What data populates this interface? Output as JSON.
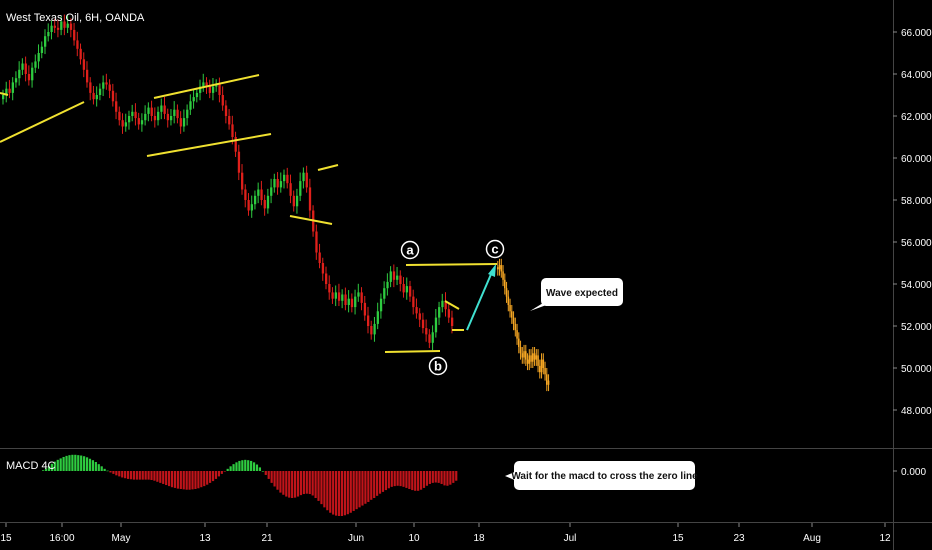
{
  "header": {
    "symbol_title": "West Texas Oil, 6H, OANDA"
  },
  "chart_data": [
    {
      "type": "candlestick",
      "title": "West Texas Oil, 6H, OANDA",
      "ylim": [
        47.0,
        67.5
      ],
      "y_ticks": [
        "66.000",
        "64.000",
        "62.000",
        "60.000",
        "58.000",
        "56.000",
        "54.000",
        "52.000",
        "50.000",
        "48.000"
      ],
      "x_ticks": [
        "15",
        "16:00",
        "May",
        "13",
        "21",
        "Jun",
        "10",
        "18",
        "Jul",
        "15",
        "23",
        "Aug",
        "12"
      ],
      "grid": false,
      "series": [
        {
          "name": "",
          "values": [
            63.0,
            63.3,
            63.1,
            63.6,
            63.8,
            64.2,
            64.5,
            64.0,
            63.7,
            64.3,
            64.6,
            65.0,
            65.3,
            65.8,
            66.0,
            66.3,
            66.2,
            66.1,
            66.5,
            66.2,
            66.4,
            66.1,
            65.6,
            65.2,
            64.7,
            64.2,
            63.6,
            63.1,
            62.8,
            63.0,
            63.3,
            63.6,
            63.5,
            63.2,
            62.7,
            62.2,
            61.8,
            61.5,
            61.7,
            62.0,
            62.2,
            61.9,
            61.6,
            61.8,
            62.1,
            62.4,
            62.0,
            61.8,
            62.2,
            62.5,
            62.1,
            61.8,
            62.0,
            62.3,
            61.9,
            61.5,
            61.9,
            62.3,
            62.7,
            62.9,
            63.1,
            63.4,
            63.6,
            63.4,
            63.1,
            63.4,
            63.5,
            63.0,
            62.5,
            62.0,
            61.6,
            61.0,
            60.3,
            59.3,
            58.5,
            58.0,
            57.5,
            57.8,
            58.2,
            58.5,
            58.0,
            57.6,
            58.2,
            58.6,
            59.0,
            58.6,
            58.9,
            59.2,
            58.8,
            58.2,
            57.7,
            58.2,
            58.9,
            59.3,
            58.6,
            57.5,
            56.5,
            55.5,
            55.0,
            54.5,
            54.0,
            53.6,
            53.3,
            53.6,
            53.2,
            53.5,
            53.0,
            53.3,
            52.9,
            53.4,
            53.6,
            53.1,
            52.5,
            52.0,
            51.6,
            52.1,
            52.7,
            53.3,
            53.8,
            54.1,
            54.6,
            54.2,
            54.4,
            54.0,
            53.6,
            53.9,
            53.4,
            52.9,
            52.6,
            52.3,
            51.9,
            51.6,
            51.2,
            51.7,
            52.4,
            52.9,
            53.2,
            52.8,
            52.4,
            52.0
          ]
        },
        {
          "name": "",
          "values": [
            54.7,
            54.9,
            54.6,
            54.2,
            53.8,
            53.4,
            53.0,
            52.7,
            52.4,
            52.1,
            51.8,
            51.4,
            51.0,
            50.7,
            50.5,
            50.8,
            50.4,
            50.2,
            50.6,
            50.3,
            50.7,
            50.4,
            50.6,
            50.1,
            49.8,
            50.4,
            50.0,
            49.7,
            49.2,
            49.4
          ]
        }
      ],
      "annotations": [
        "a",
        "b",
        "c",
        "Wave expected"
      ]
    },
    {
      "type": "bar",
      "title": "MACD 4C",
      "ylim": [
        -1.3,
        0.55
      ],
      "y_ticks": [
        "0.000"
      ],
      "x_ticks": [
        "15",
        "16:00",
        "May",
        "13",
        "21",
        "Jun",
        "10",
        "18",
        "Jul",
        "15",
        "23",
        "Aug",
        "12"
      ],
      "series": [
        {
          "name": "",
          "values": [
            0.02,
            0.07,
            0.13,
            0.2,
            0.26,
            0.31,
            0.35,
            0.39,
            0.42,
            0.44,
            0.45,
            0.45,
            0.44,
            0.43,
            0.41,
            0.38,
            0.34,
            0.3,
            0.25,
            0.19,
            0.13,
            0.06,
            0.01,
            -0.04,
            -0.08,
            -0.12,
            -0.15,
            -0.18,
            -0.2,
            -0.22,
            -0.23,
            -0.24,
            -0.24,
            -0.24,
            -0.24,
            -0.24,
            -0.24,
            -0.25,
            -0.27,
            -0.3,
            -0.33,
            -0.36,
            -0.39,
            -0.42,
            -0.45,
            -0.47,
            -0.49,
            -0.5,
            -0.51,
            -0.52,
            -0.52,
            -0.51,
            -0.5,
            -0.48,
            -0.45,
            -0.42,
            -0.38,
            -0.33,
            -0.28,
            -0.22,
            -0.15,
            -0.08,
            -0.01,
            0.06,
            0.13,
            0.19,
            0.24,
            0.28,
            0.3,
            0.31,
            0.3,
            0.28,
            0.24,
            0.18,
            0.1,
            0.0,
            -0.11,
            -0.22,
            -0.33,
            -0.43,
            -0.52,
            -0.6,
            -0.66,
            -0.71,
            -0.74,
            -0.75,
            -0.74,
            -0.71,
            -0.67,
            -0.64,
            -0.63,
            -0.64,
            -0.68,
            -0.75,
            -0.83,
            -0.92,
            -1.01,
            -1.09,
            -1.16,
            -1.21,
            -1.24,
            -1.25,
            -1.25,
            -1.23,
            -1.2,
            -1.16,
            -1.11,
            -1.06,
            -1.01,
            -0.96,
            -0.91,
            -0.86,
            -0.8,
            -0.75,
            -0.69,
            -0.63,
            -0.58,
            -0.53,
            -0.48,
            -0.44,
            -0.42,
            -0.41,
            -0.42,
            -0.44,
            -0.47,
            -0.5,
            -0.53,
            -0.55,
            -0.55,
            -0.52,
            -0.47,
            -0.41,
            -0.36,
            -0.33,
            -0.32,
            -0.33,
            -0.36,
            -0.4,
            -0.41,
            -0.38,
            -0.33,
            -0.27
          ]
        }
      ]
    }
  ],
  "annotations": {
    "label_a": "a",
    "label_b": "b",
    "label_c": "c",
    "wave_expected": "Wave expected",
    "macd_note": "Wait for the macd to cross the zero line"
  },
  "indicator": {
    "label": "MACD 4C"
  },
  "colors": {
    "background": "#000000",
    "up_candle": "#2ecc40",
    "down_candle": "#e0201b",
    "projection": "#f5a623",
    "trendline": "#f0e130",
    "arrow": "#40e0d0",
    "macd_positive": "#2ecc40",
    "macd_negative": "#c0141a",
    "axis_text": "#ffffff"
  }
}
